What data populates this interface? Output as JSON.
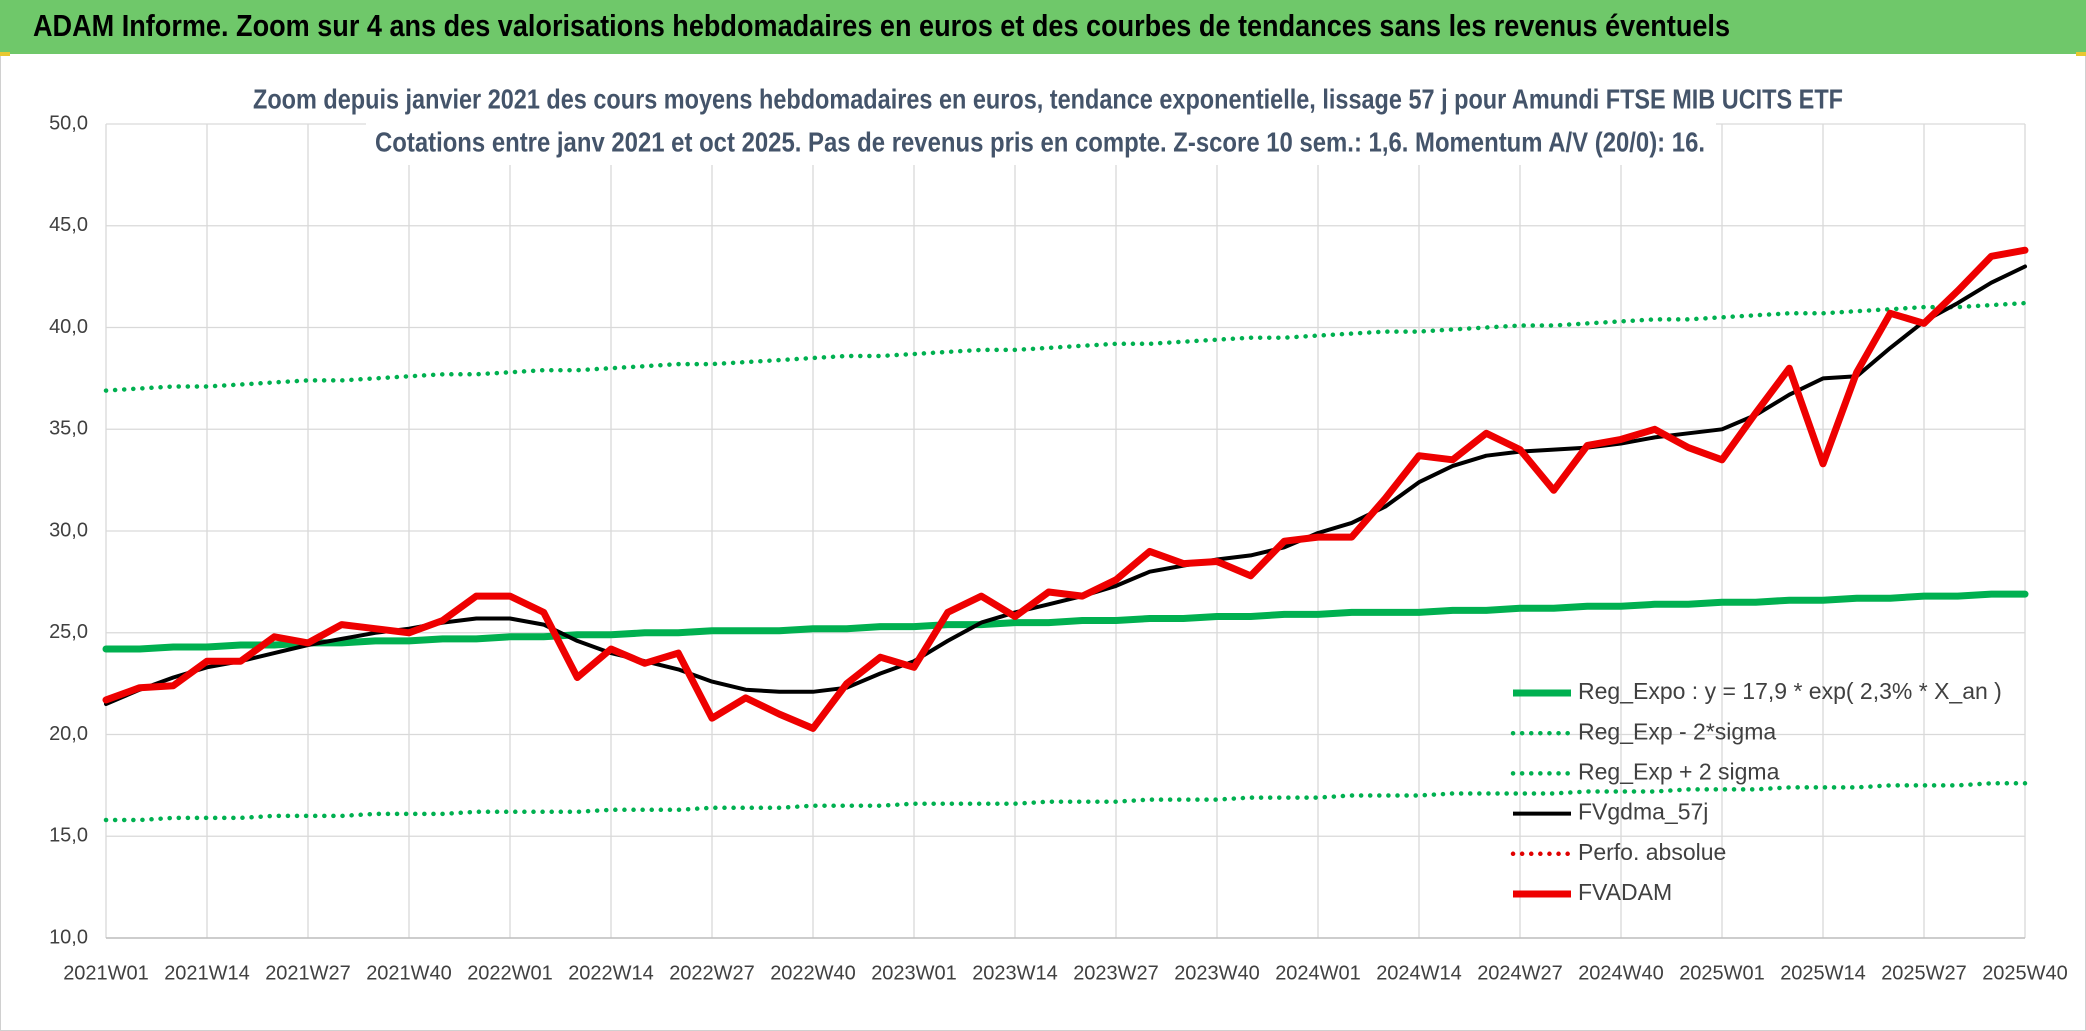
{
  "header": {
    "title": "ADAM Informe. Zoom sur 4 ans des valorisations hebdomadaires en euros et des courbes de tendances sans les revenus éventuels"
  },
  "chart_data": {
    "type": "line",
    "title": "Zoom depuis janvier 2021 des cours moyens hebdomadaires en euros, tendance exponentielle, lissage 57 j pour Amundi FTSE MIB UCITS ETF",
    "subtitle": "Cotations entre janv 2021 et oct 2025. Pas de revenus pris en compte. Z-score 10 sem.: 1,6. Momentum A/V (20/0): 16.",
    "categories": [
      "2021W01",
      null,
      null,
      "2021W14",
      null,
      null,
      "2021W27",
      null,
      null,
      "2021W40",
      null,
      null,
      "2022W01",
      null,
      null,
      "2022W14",
      null,
      null,
      "2022W27",
      null,
      null,
      "2022W40",
      null,
      null,
      "2023W01",
      null,
      null,
      "2023W14",
      null,
      null,
      "2023W27",
      null,
      null,
      "2023W40",
      null,
      null,
      "2024W01",
      null,
      null,
      "2024W14",
      null,
      null,
      "2024W27",
      null,
      null,
      "2024W40",
      null,
      null,
      "2025W01",
      null,
      null,
      "2025W14",
      null,
      null,
      "2025W27",
      null,
      null,
      "2025W40"
    ],
    "ylim": [
      10,
      50
    ],
    "yticks": [
      {
        "value": 10,
        "label": "10,0"
      },
      {
        "value": 15,
        "label": "15,0"
      },
      {
        "value": 20,
        "label": "20,0"
      },
      {
        "value": 25,
        "label": "25,0"
      },
      {
        "value": 30,
        "label": "30,0"
      },
      {
        "value": 35,
        "label": "35,0"
      },
      {
        "value": 40,
        "label": "40,0"
      },
      {
        "value": 45,
        "label": "45,0"
      },
      {
        "value": 50,
        "label": "50,0"
      }
    ],
    "grid": true,
    "legend": "right",
    "series": [
      {
        "name": "Reg_Expo : y = 17,9 * exp( 2,3% *  X_an )",
        "color": "#00b050",
        "linestyle": "thick",
        "values": [
          24.2,
          24.2,
          24.3,
          24.3,
          24.4,
          24.4,
          24.5,
          24.5,
          24.6,
          24.6,
          24.7,
          24.7,
          24.8,
          24.8,
          24.9,
          24.9,
          25.0,
          25.0,
          25.1,
          25.1,
          25.1,
          25.2,
          25.2,
          25.3,
          25.3,
          25.4,
          25.4,
          25.5,
          25.5,
          25.6,
          25.6,
          25.7,
          25.7,
          25.8,
          25.8,
          25.9,
          25.9,
          26.0,
          26.0,
          26.0,
          26.1,
          26.1,
          26.2,
          26.2,
          26.3,
          26.3,
          26.4,
          26.4,
          26.5,
          26.5,
          26.6,
          26.6,
          26.7,
          26.7,
          26.8,
          26.8,
          26.9,
          26.9
        ]
      },
      {
        "name": "Reg_Exp - 2*sigma",
        "color": "#00b050",
        "linestyle": "dotted",
        "values": [
          15.8,
          15.8,
          15.9,
          15.9,
          15.9,
          16.0,
          16.0,
          16.0,
          16.1,
          16.1,
          16.1,
          16.2,
          16.2,
          16.2,
          16.2,
          16.3,
          16.3,
          16.3,
          16.4,
          16.4,
          16.4,
          16.5,
          16.5,
          16.5,
          16.6,
          16.6,
          16.6,
          16.6,
          16.7,
          16.7,
          16.7,
          16.8,
          16.8,
          16.8,
          16.9,
          16.9,
          16.9,
          17.0,
          17.0,
          17.0,
          17.1,
          17.1,
          17.1,
          17.1,
          17.2,
          17.2,
          17.2,
          17.3,
          17.3,
          17.3,
          17.4,
          17.4,
          17.4,
          17.5,
          17.5,
          17.5,
          17.6,
          17.6
        ]
      },
      {
        "name": "Reg_Exp + 2 sigma",
        "color": "#00b050",
        "linestyle": "dotted",
        "values": [
          36.9,
          37.0,
          37.1,
          37.1,
          37.2,
          37.3,
          37.4,
          37.4,
          37.5,
          37.6,
          37.7,
          37.7,
          37.8,
          37.9,
          37.9,
          38.0,
          38.1,
          38.2,
          38.2,
          38.3,
          38.4,
          38.5,
          38.6,
          38.6,
          38.7,
          38.8,
          38.9,
          38.9,
          39.0,
          39.1,
          39.2,
          39.2,
          39.3,
          39.4,
          39.5,
          39.5,
          39.6,
          39.7,
          39.8,
          39.8,
          39.9,
          40.0,
          40.1,
          40.1,
          40.2,
          40.3,
          40.4,
          40.4,
          40.5,
          40.6,
          40.7,
          40.7,
          40.8,
          40.9,
          41.0,
          41.0,
          41.1,
          41.2
        ]
      },
      {
        "name": "FVgdma_57j",
        "color": "#000000",
        "linestyle": "thin",
        "values": [
          21.5,
          22.2,
          22.8,
          23.3,
          23.6,
          24.0,
          24.4,
          24.7,
          25.0,
          25.2,
          25.5,
          25.7,
          25.7,
          25.4,
          24.6,
          24.0,
          23.6,
          23.2,
          22.6,
          22.2,
          22.1,
          22.1,
          22.3,
          23.0,
          23.6,
          24.6,
          25.5,
          26.0,
          26.4,
          26.8,
          27.3,
          28.0,
          28.3,
          28.6,
          28.8,
          29.2,
          29.9,
          30.4,
          31.2,
          32.4,
          33.2,
          33.7,
          33.9,
          34.0,
          34.1,
          34.3,
          34.6,
          34.8,
          35.0,
          35.7,
          36.7,
          37.5,
          37.6,
          39.0,
          40.3,
          41.2,
          42.2,
          43.0
        ]
      },
      {
        "name": "Perfo. absolue",
        "color": "#e00000",
        "linestyle": "dotted",
        "values": [
          null,
          null,
          null,
          null,
          null,
          null,
          null,
          null,
          null,
          null,
          null,
          null,
          null,
          null,
          null,
          null,
          null,
          null,
          null,
          null,
          null,
          null,
          null,
          null,
          null,
          null,
          null,
          null,
          null,
          null,
          null,
          null,
          null,
          null,
          null,
          null,
          null,
          null,
          null,
          null,
          null,
          null,
          null,
          null,
          null,
          null,
          null,
          null,
          null,
          null,
          null,
          null,
          null,
          null,
          null,
          null,
          null,
          null
        ]
      },
      {
        "name": "FVADAM",
        "color": "#ee0000",
        "linestyle": "thick",
        "values": [
          21.7,
          22.3,
          22.4,
          23.6,
          23.6,
          24.8,
          24.5,
          25.4,
          25.2,
          25.0,
          25.6,
          26.8,
          26.8,
          26.0,
          22.8,
          24.2,
          23.5,
          24.0,
          20.8,
          21.8,
          21.0,
          20.3,
          22.5,
          23.8,
          23.3,
          26.0,
          26.8,
          25.8,
          27.0,
          26.8,
          27.6,
          29.0,
          28.4,
          28.5,
          27.8,
          29.5,
          29.7,
          29.7,
          31.6,
          33.7,
          33.5,
          34.8,
          34.0,
          32.0,
          34.2,
          34.5,
          35.0,
          34.1,
          33.5,
          35.8,
          38.0,
          33.3,
          37.8,
          40.7,
          40.2,
          41.8,
          43.5,
          43.8
        ]
      }
    ]
  }
}
